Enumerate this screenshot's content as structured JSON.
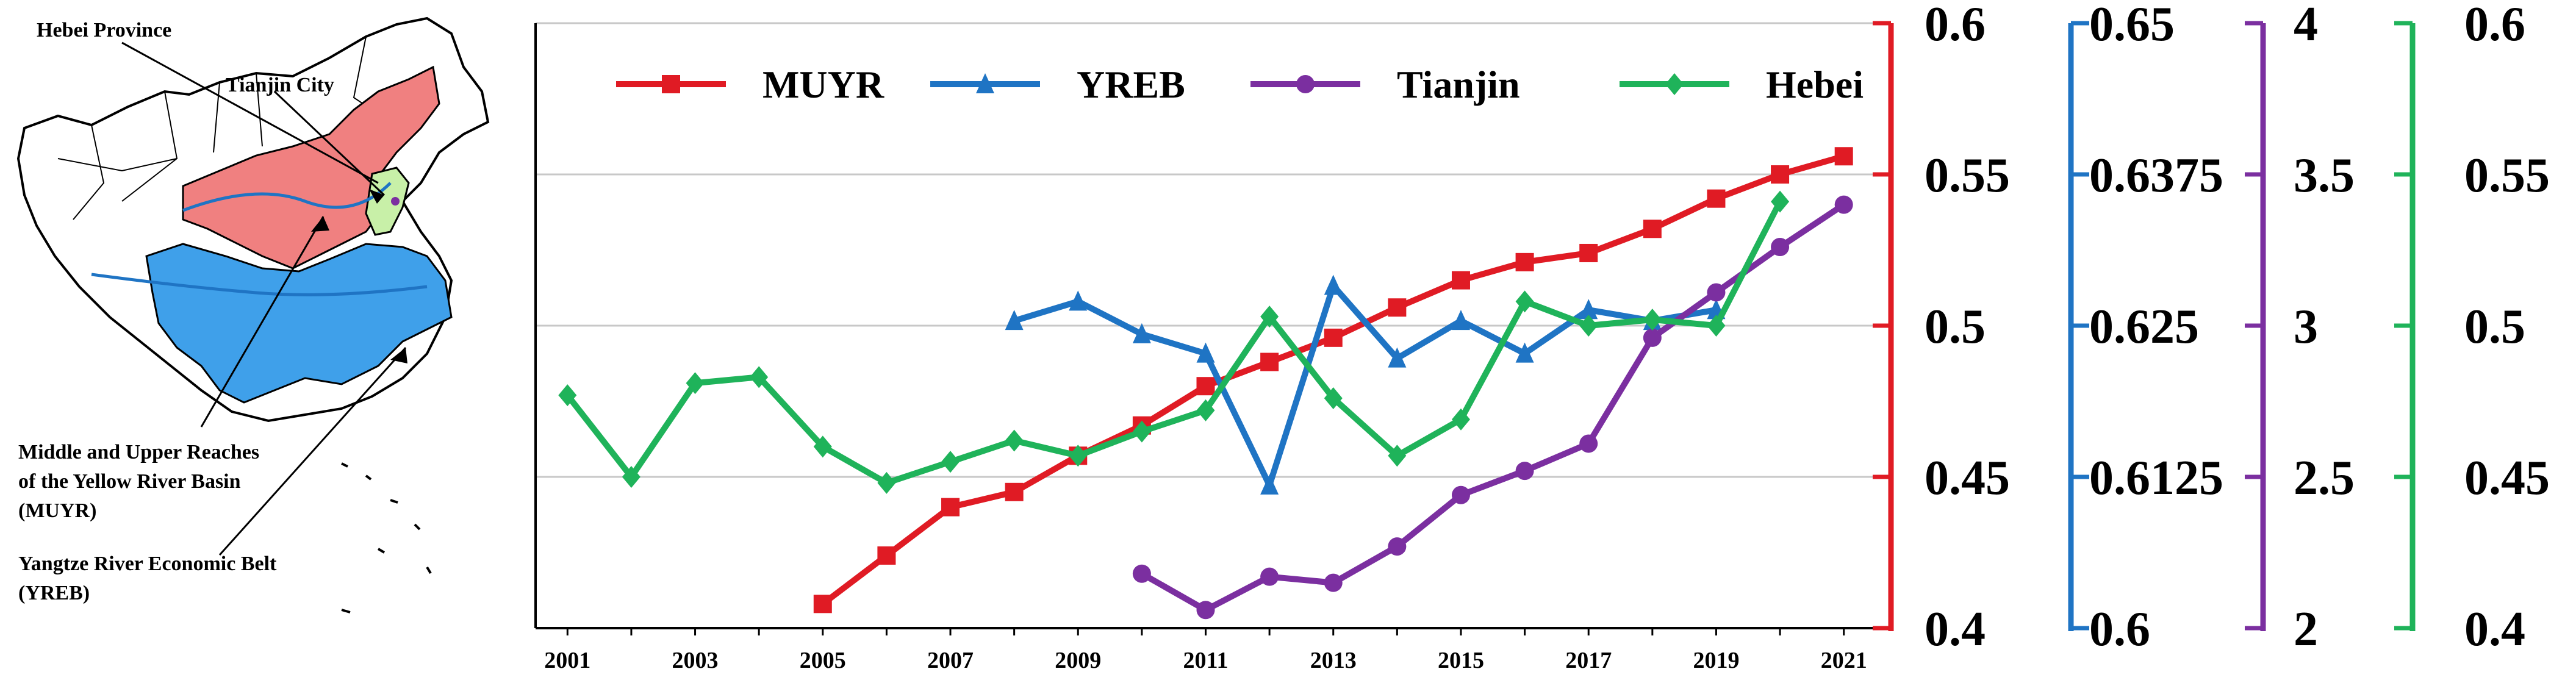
{
  "map": {
    "callouts": {
      "hebei": "Hebei Province",
      "tianjin": "Tianjin City",
      "muyr_line1": "Middle and Upper Reaches",
      "muyr_line2": "of the Yellow River Basin",
      "muyr_line3": "(MUYR)",
      "yreb_line1": "Yangtze River Economic Belt",
      "yreb_line2": "(YREB)"
    },
    "colors": {
      "muyr": "#f08080",
      "yreb": "#3fa0ea",
      "tianjin": "#c8f0a8",
      "outline": "#000000"
    }
  },
  "chart_data": {
    "type": "line",
    "title": "",
    "xlabel": "",
    "x": [
      2001,
      2002,
      2003,
      2004,
      2005,
      2006,
      2007,
      2008,
      2009,
      2010,
      2011,
      2012,
      2013,
      2014,
      2015,
      2016,
      2017,
      2018,
      2019,
      2020,
      2021
    ],
    "x_tick_labels": [
      "2001",
      "2003",
      "2005",
      "2007",
      "2009",
      "2011",
      "2013",
      "2015",
      "2017",
      "2019",
      "2021"
    ],
    "series": [
      {
        "name": "MUYR",
        "color": "#e01b24",
        "marker": "square",
        "axis": 0,
        "x": [
          2005,
          2006,
          2007,
          2008,
          2009,
          2010,
          2011,
          2012,
          2013,
          2014,
          2015,
          2016,
          2017,
          2018,
          2019,
          2020,
          2021
        ],
        "values": [
          0.408,
          0.424,
          0.44,
          0.445,
          0.457,
          0.467,
          0.48,
          0.488,
          0.496,
          0.506,
          0.515,
          0.521,
          0.524,
          0.532,
          0.542,
          0.55,
          0.556
        ]
      },
      {
        "name": "YREB",
        "color": "#1f74c4",
        "marker": "triangle",
        "axis": 1,
        "x": [
          2008,
          2009,
          2010,
          2011,
          2012,
          2013,
          2014,
          2015,
          2016,
          2017,
          2018,
          2019
        ],
        "values": [
          0.6254,
          0.627,
          0.6243,
          0.6227,
          0.6118,
          0.6283,
          0.6223,
          0.6254,
          0.6227,
          0.6263,
          0.6254,
          0.6263
        ]
      },
      {
        "name": "Tianjin",
        "color": "#7b2fa0",
        "marker": "circle",
        "axis": 2,
        "x": [
          2010,
          2011,
          2012,
          2013,
          2014,
          2015,
          2016,
          2017,
          2018,
          2019,
          2020,
          2021
        ],
        "values": [
          2.18,
          2.06,
          2.17,
          2.15,
          2.27,
          2.44,
          2.52,
          2.61,
          2.96,
          3.11,
          3.26,
          3.4
        ]
      },
      {
        "name": "Hebei",
        "color": "#1fb35a",
        "marker": "diamond",
        "axis": 3,
        "x": [
          2001,
          2002,
          2003,
          2004,
          2005,
          2006,
          2007,
          2008,
          2009,
          2010,
          2011,
          2012,
          2013,
          2014,
          2015,
          2016,
          2017,
          2018,
          2019,
          2020
        ],
        "values": [
          0.477,
          0.45,
          0.481,
          0.483,
          0.46,
          0.448,
          0.455,
          0.462,
          0.457,
          0.465,
          0.472,
          0.503,
          0.476,
          0.457,
          0.469,
          0.508,
          0.5,
          0.502,
          0.5,
          0.541
        ]
      }
    ],
    "y_axes": [
      {
        "name": "MUYR",
        "color": "#e01b24",
        "ylim": [
          0.4,
          0.6
        ],
        "ticks": [
          "0.4",
          "0.45",
          "0.5",
          "0.55",
          "0.6"
        ],
        "position": "right-1"
      },
      {
        "name": "YREB",
        "color": "#1f74c4",
        "ylim": [
          0.6,
          0.65
        ],
        "ticks": [
          "0.6",
          "0.6125",
          "0.625",
          "0.6375",
          "0.65"
        ],
        "position": "right-2"
      },
      {
        "name": "Tianjin",
        "color": "#7b2fa0",
        "ylim": [
          2,
          4
        ],
        "ticks": [
          "2",
          "2.5",
          "3",
          "3.5",
          "4"
        ],
        "position": "right-3"
      },
      {
        "name": "Hebei",
        "color": "#1fb35a",
        "ylim": [
          0.4,
          0.6
        ],
        "ticks": [
          "0.4",
          "0.45",
          "0.5",
          "0.55",
          "0.6"
        ],
        "position": "right-4"
      }
    ],
    "gridlines": "horizontal",
    "legend_position": "top"
  }
}
